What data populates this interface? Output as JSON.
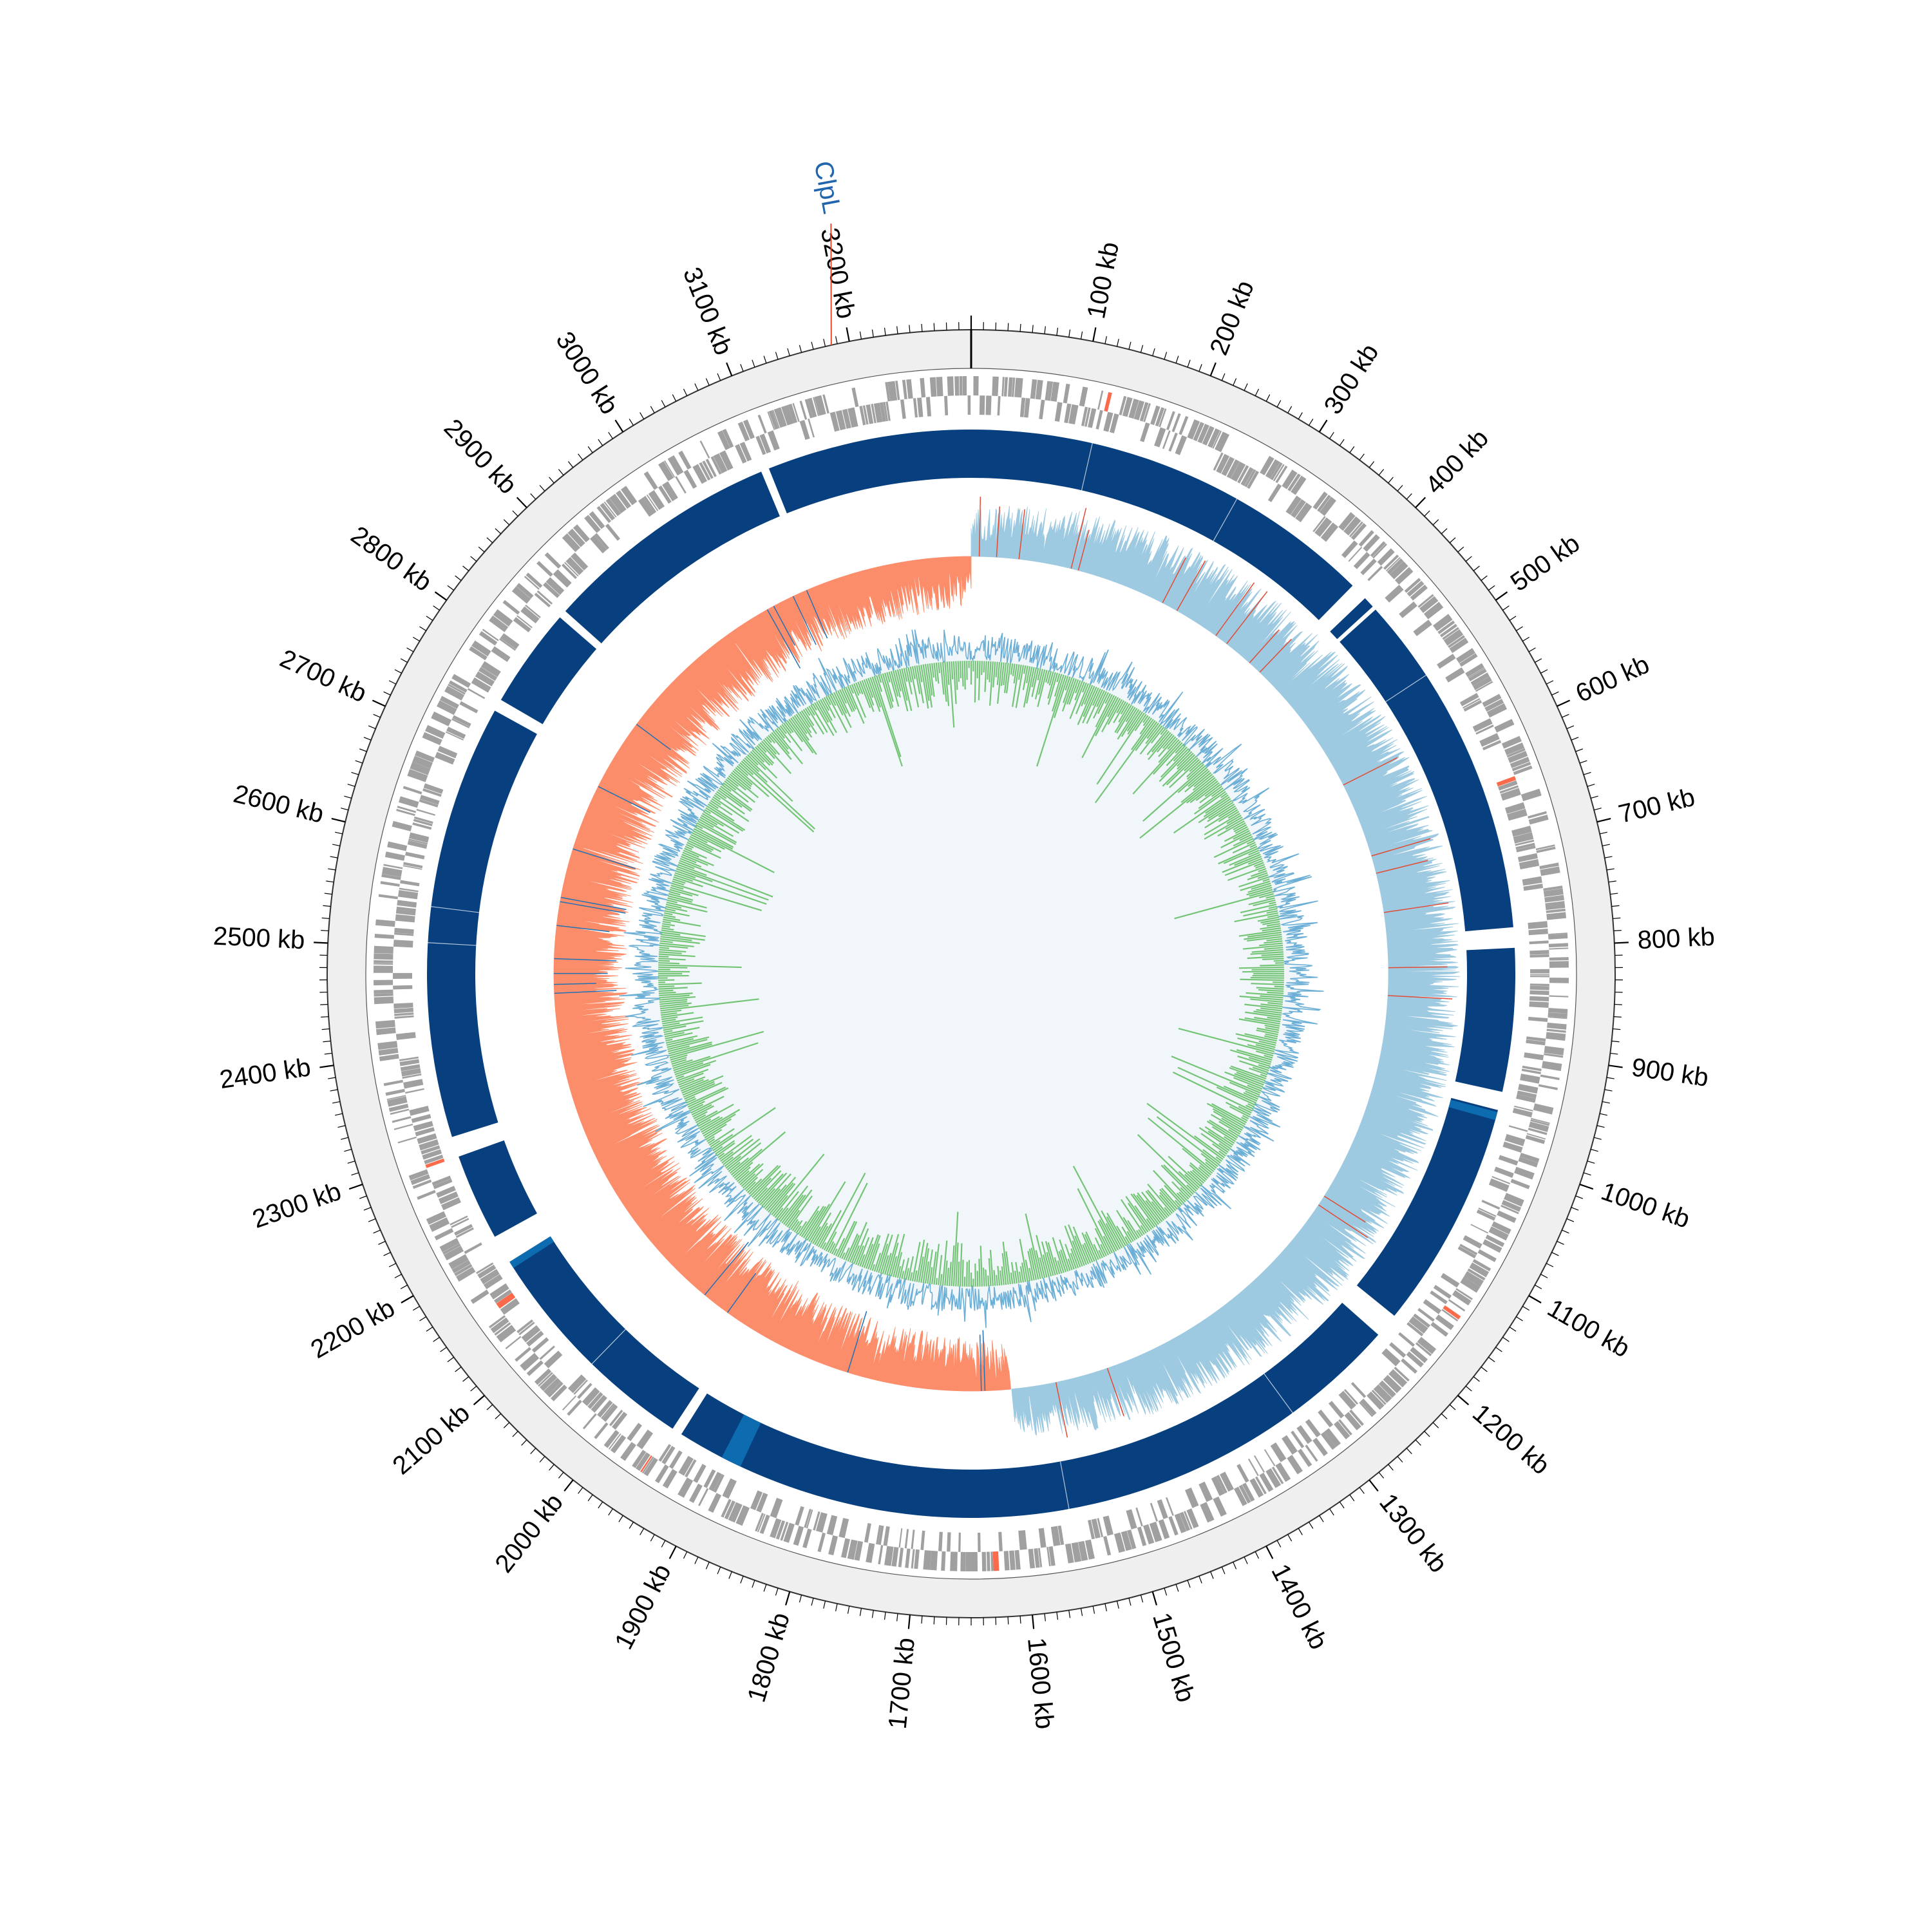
{
  "genome": {
    "length_kb": 3300,
    "tick_labels": [
      "100 kb",
      "200 kb",
      "300 kb",
      "400 kb",
      "500 kb",
      "600 kb",
      "700 kb",
      "800 kb",
      "900 kb",
      "1000 kb",
      "1100 kb",
      "1200 kb",
      "1300 kb",
      "1400 kb",
      "1500 kb",
      "1600 kb",
      "1700 kb",
      "1800 kb",
      "1900 kb",
      "2000 kb",
      "2100 kb",
      "2200 kb",
      "2300 kb",
      "2400 kb",
      "2500 kb",
      "2600 kb",
      "2700 kb",
      "2800 kb",
      "2900 kb",
      "3000 kb",
      "3100 kb",
      "3200 kb"
    ]
  },
  "highlighted_gene": {
    "label": "ClpL",
    "position_kb": 3185
  },
  "colors": {
    "ring_background": "#efefef",
    "gene_features": "#a0a0a0",
    "gene_highlight": "#fb6a4a",
    "contig_blocks": "#08407f",
    "contig_alt": "#0d6bb0",
    "gc_skew_positive": "#9ecae1",
    "gc_skew_negative": "#fc8d6a",
    "gc_content_outer": "#6baed6",
    "gc_content_inner": "#74c476",
    "label_color": "#2166ac",
    "pointer_line": "#e34a33"
  },
  "contig_gaps_kb": [
    [
      3092,
      3100
    ],
    [
      408,
      425
    ],
    [
      436,
      440
    ],
    [
      780,
      800
    ],
    [
      940,
      958
    ],
    [
      1182,
      1206
    ],
    [
      1945,
      1955
    ],
    [
      2180,
      2210
    ],
    [
      2295,
      2315
    ],
    [
      2740,
      2752
    ],
    [
      2850,
      2858
    ]
  ],
  "contig_alt_kb": [
    [
      960,
      968
    ],
    [
      1880,
      1900
    ],
    [
      2175,
      2182
    ]
  ],
  "ring_tracks": [
    "gene-features",
    "contig-blocks",
    "gc-skew",
    "gc-content"
  ]
}
